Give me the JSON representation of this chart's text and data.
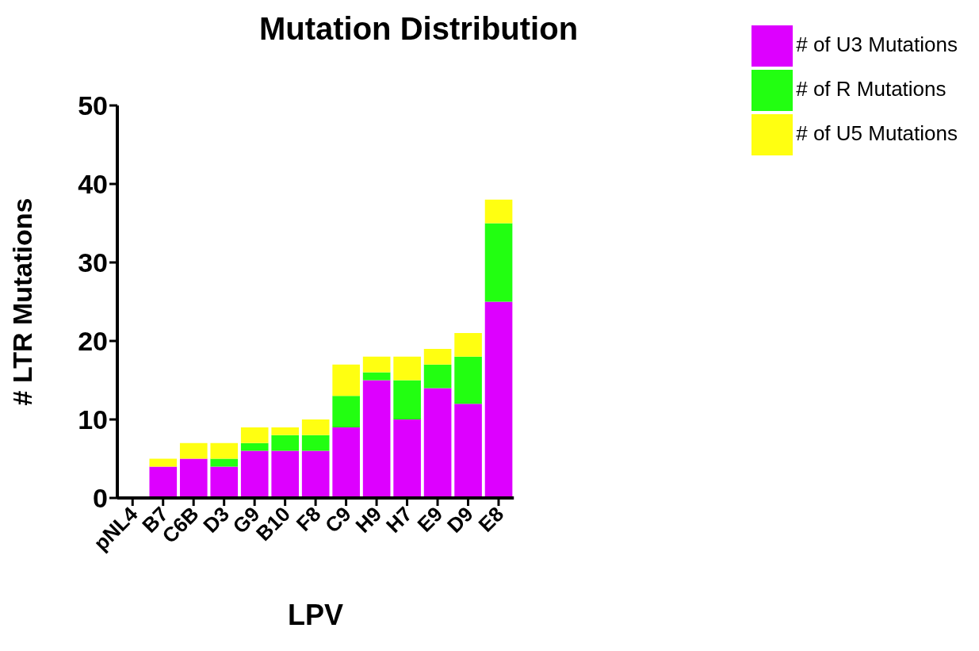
{
  "chart_data": {
    "type": "bar",
    "title": "Mutation Distribution",
    "xlabel": "LPV",
    "ylabel": "# LTR Mutations",
    "categories": [
      "pNL4",
      "B7",
      "C6B",
      "D3",
      "G9",
      "B10",
      "F8",
      "C9",
      "H9",
      "H7",
      "E9",
      "D9",
      "E8"
    ],
    "stacked": true,
    "series": [
      {
        "name": "# of U3 Mutations",
        "color": "#dd00ff",
        "values": [
          0,
          4,
          5,
          4,
          6,
          6,
          6,
          9,
          15,
          10,
          14,
          12,
          25
        ]
      },
      {
        "name": "# of R Mutations",
        "color": "#22ff11",
        "values": [
          0,
          0,
          0,
          1,
          1,
          2,
          2,
          4,
          1,
          5,
          3,
          6,
          10
        ]
      },
      {
        "name": "# of U5 Mutations",
        "color": "#ffff11",
        "values": [
          0,
          1,
          2,
          2,
          2,
          1,
          2,
          4,
          2,
          3,
          2,
          3,
          3
        ]
      }
    ],
    "ylim": [
      0,
      50
    ],
    "yticks": [
      0,
      10,
      20,
      30,
      40,
      50
    ],
    "grid": false,
    "legend": "top right"
  }
}
